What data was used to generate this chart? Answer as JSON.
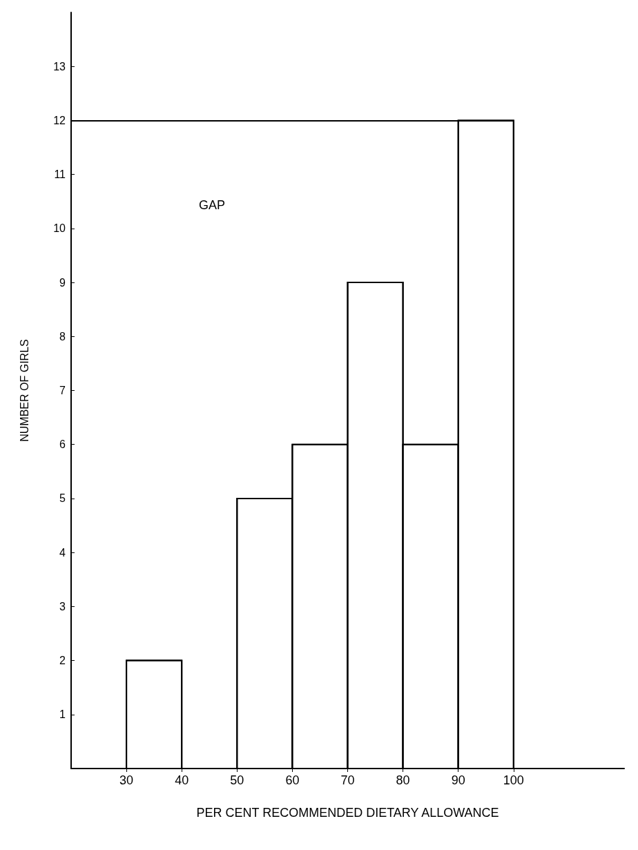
{
  "chart_data": {
    "type": "histogram",
    "xlabel": "PER CENT RECOMMENDED DIETARY ALLOWANCE",
    "ylabel": "NUMBER OF GIRLS",
    "bins": [
      30,
      40,
      50,
      60,
      70,
      80,
      90,
      100
    ],
    "values": [
      2,
      0,
      5,
      6,
      9,
      6,
      12
    ],
    "color": "#ffffff",
    "xlim": [
      20,
      120
    ],
    "ylim": [
      0,
      14
    ],
    "xticks": [
      30,
      40,
      50,
      60,
      70,
      80,
      90,
      100
    ],
    "yticks": [
      {
        "value": 0,
        "label": null
      },
      1,
      2,
      3,
      4,
      5,
      6,
      7,
      8,
      9,
      10,
      11,
      12,
      13
    ],
    "ref_lines": [
      {
        "axis": "y",
        "value": 12,
        "color": "#000000"
      }
    ],
    "annotations": [
      "GAP"
    ],
    "grid": false
  }
}
